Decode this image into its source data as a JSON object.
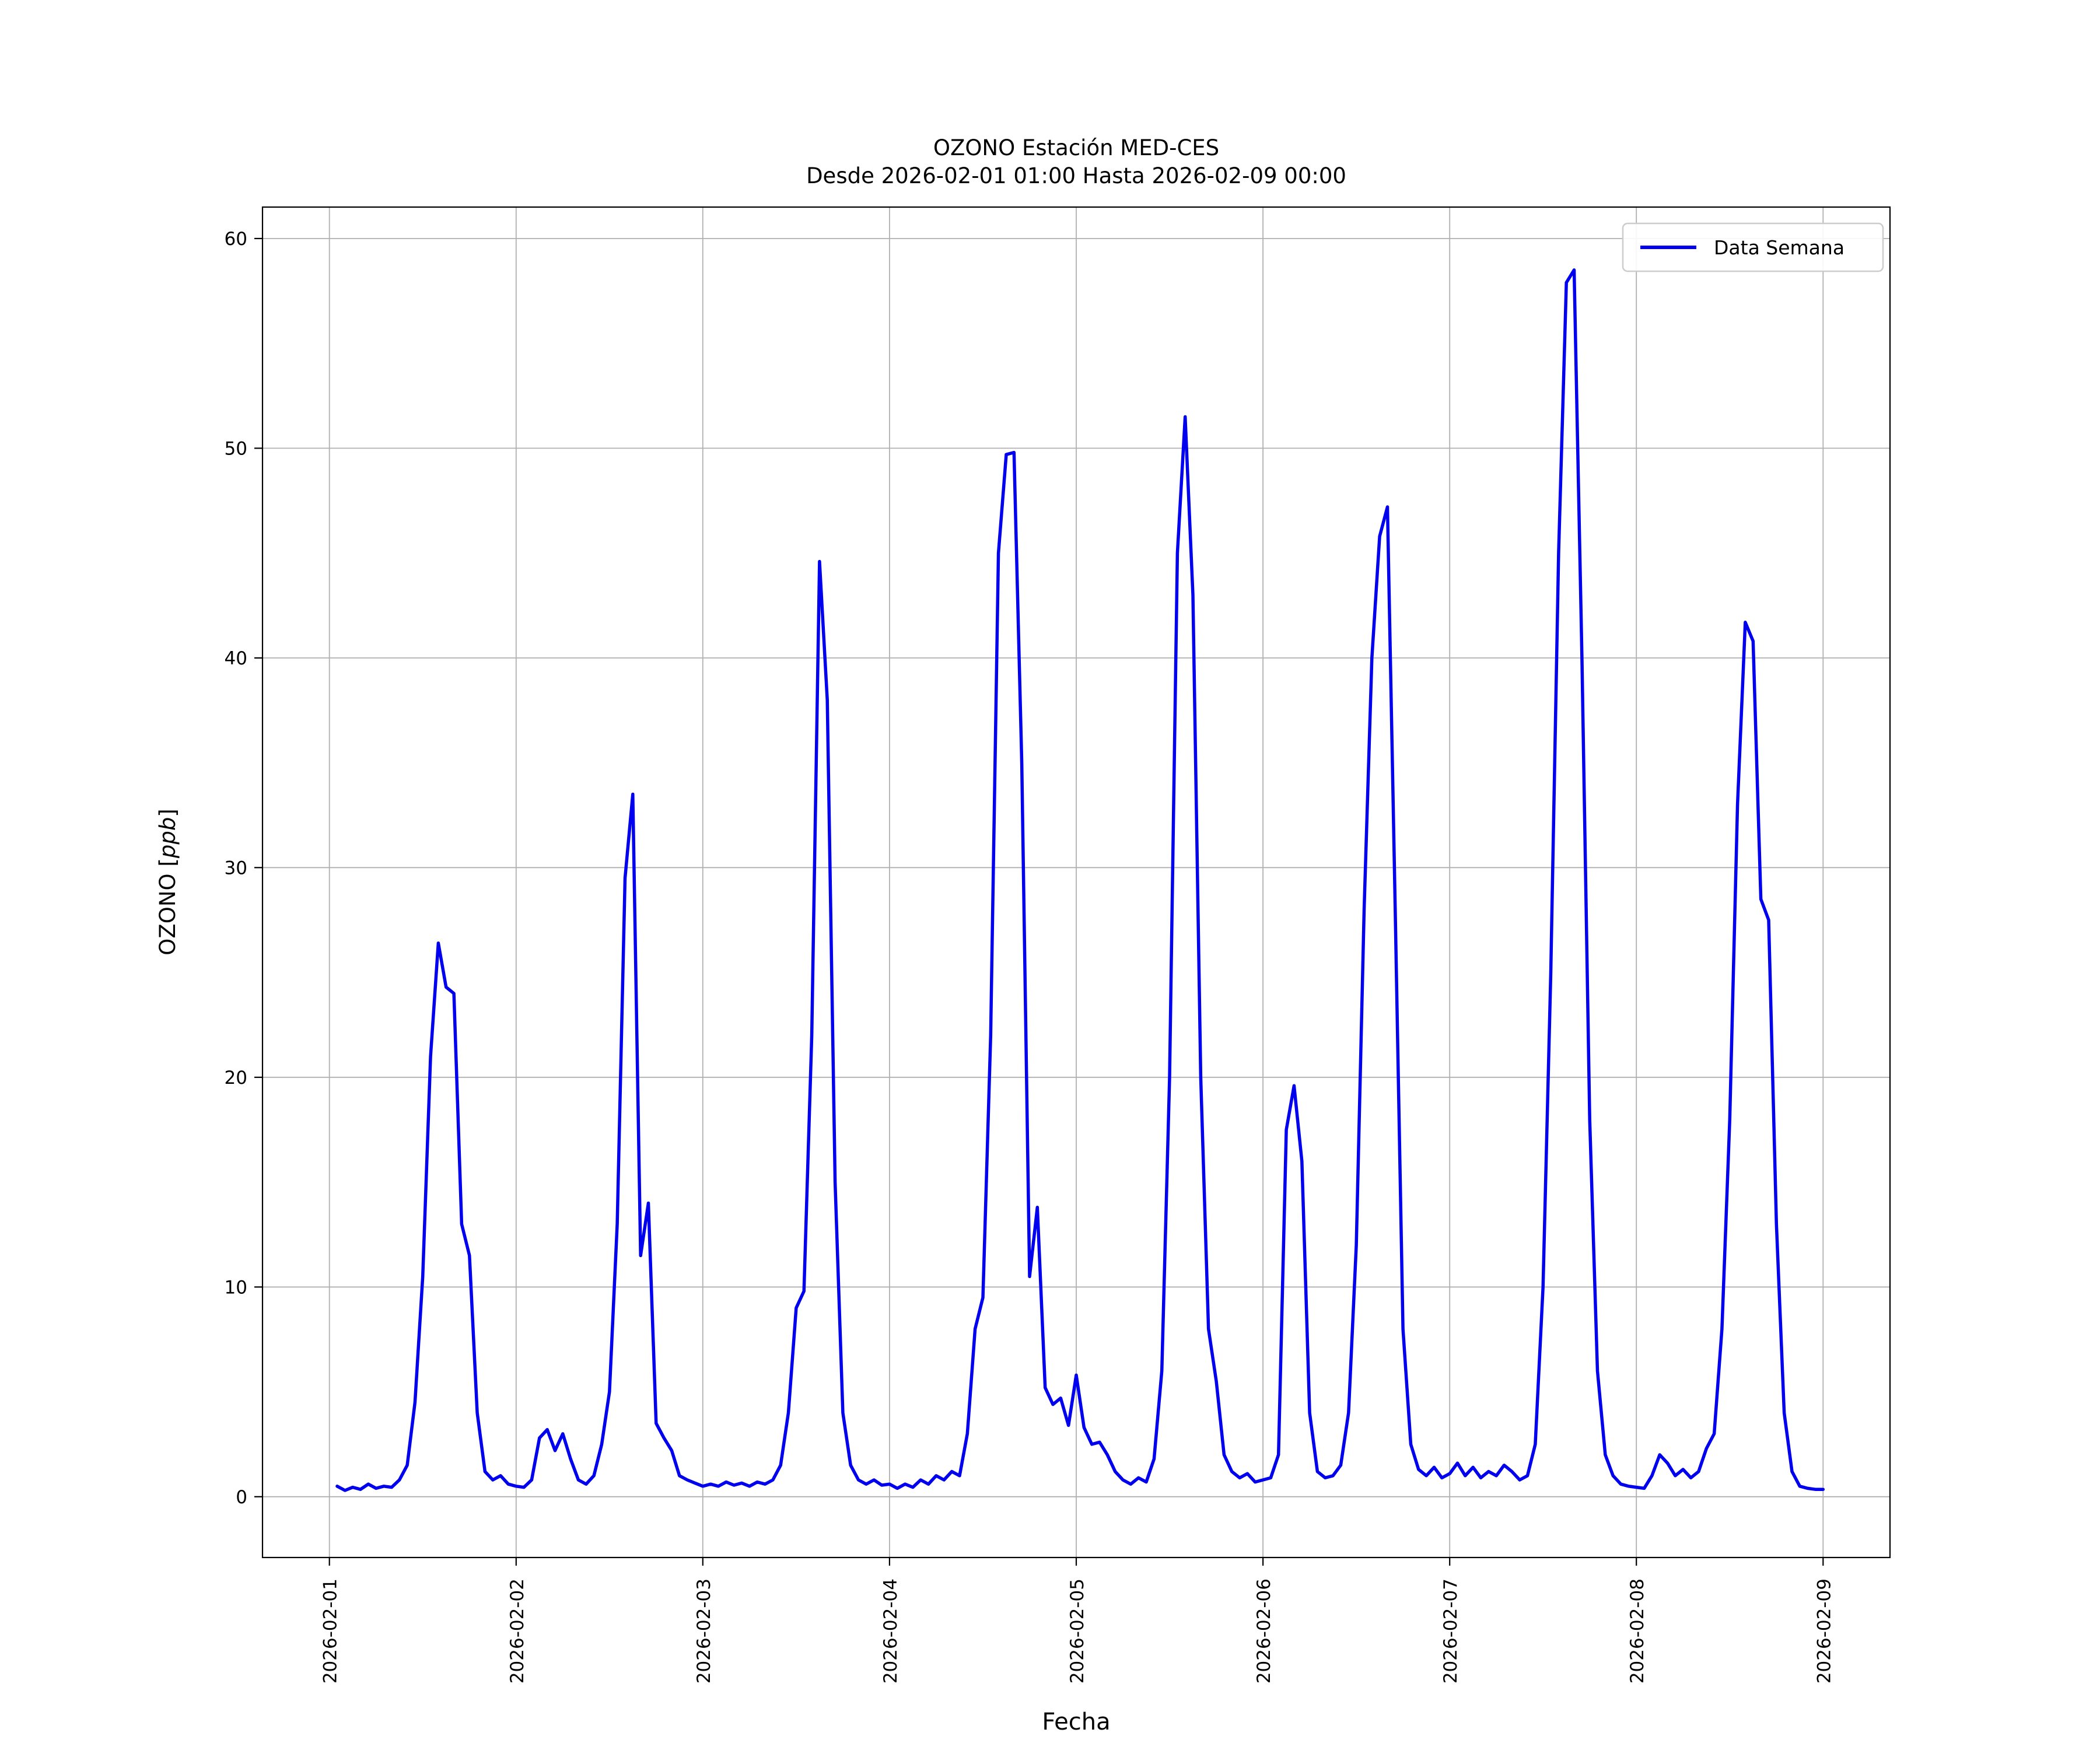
{
  "chart_data": {
    "type": "line",
    "title": "OZONO Estación MED-CES",
    "subtitle": "Desde 2026-02-01 01:00 Hasta 2026-02-09 00:00",
    "xlabel": "Fecha",
    "ylabel_prefix": "OZONO [",
    "ylabel_italic": "ppb",
    "ylabel_suffix": "]",
    "legend": [
      "Data Semana"
    ],
    "legend_position": "upper right",
    "grid": true,
    "line_color": "#0000ee",
    "grid_color": "#b0b0b0",
    "ylim": [
      -2.9,
      61.5
    ],
    "xlim_hours": [
      -8.6,
      200.6
    ],
    "y_ticks": [
      0,
      10,
      20,
      30,
      40,
      50,
      60
    ],
    "x_tick_hours": [
      0,
      24,
      48,
      72,
      96,
      120,
      144,
      168,
      192
    ],
    "x_tick_labels": [
      "2026-02-01",
      "2026-02-02",
      "2026-02-03",
      "2026-02-04",
      "2026-02-05",
      "2026-02-06",
      "2026-02-07",
      "2026-02-08",
      "2026-02-09"
    ],
    "series": [
      {
        "name": "Data Semana",
        "x_start_hour": 1,
        "x_step_hours": 1,
        "values": [
          0.5,
          0.3,
          0.45,
          0.35,
          0.6,
          0.4,
          0.5,
          0.45,
          0.8,
          1.5,
          4.5,
          10.5,
          21.0,
          26.4,
          24.3,
          24.0,
          13.0,
          11.5,
          4.0,
          1.2,
          0.8,
          1.0,
          0.6,
          0.5,
          0.45,
          0.8,
          2.8,
          3.2,
          2.2,
          3.0,
          1.8,
          0.8,
          0.6,
          1.0,
          2.5,
          5.0,
          13.0,
          29.5,
          33.5,
          11.5,
          14.0,
          3.5,
          2.8,
          2.2,
          1.0,
          0.8,
          0.65,
          0.5,
          0.6,
          0.5,
          0.7,
          0.55,
          0.65,
          0.5,
          0.7,
          0.6,
          0.8,
          1.5,
          4.0,
          9.0,
          9.8,
          22.0,
          44.6,
          38.0,
          15.0,
          4.0,
          1.5,
          0.8,
          0.6,
          0.8,
          0.55,
          0.6,
          0.4,
          0.6,
          0.45,
          0.8,
          0.6,
          1.0,
          0.8,
          1.2,
          1.0,
          3.0,
          8.0,
          9.5,
          22.0,
          45.0,
          49.7,
          49.8,
          35.0,
          10.5,
          13.8,
          5.2,
          4.4,
          4.7,
          3.4,
          5.8,
          3.3,
          2.5,
          2.6,
          2.0,
          1.2,
          0.8,
          0.6,
          0.9,
          0.7,
          1.8,
          6.0,
          20.0,
          45.0,
          51.5,
          43.0,
          20.0,
          8.0,
          5.5,
          2.0,
          1.2,
          0.9,
          1.1,
          0.7,
          0.8,
          0.9,
          2.0,
          17.5,
          19.6,
          16.0,
          4.0,
          1.2,
          0.9,
          1.0,
          1.5,
          4.0,
          12.0,
          28.0,
          40.0,
          45.8,
          47.2,
          28.0,
          8.0,
          2.5,
          1.3,
          1.0,
          1.4,
          0.9,
          1.1,
          1.6,
          1.0,
          1.4,
          0.9,
          1.2,
          1.0,
          1.5,
          1.2,
          0.8,
          1.0,
          2.5,
          10.0,
          25.0,
          45.0,
          57.9,
          58.5,
          40.0,
          18.0,
          6.0,
          2.0,
          1.0,
          0.6,
          0.5,
          0.45,
          0.4,
          1.0,
          2.0,
          1.6,
          1.0,
          1.3,
          0.9,
          1.2,
          2.3,
          3.0,
          8.0,
          18.0,
          33.0,
          41.7,
          40.8,
          28.5,
          27.5,
          13.0,
          4.0,
          1.2,
          0.5,
          0.4,
          0.35,
          0.35
        ]
      }
    ]
  }
}
